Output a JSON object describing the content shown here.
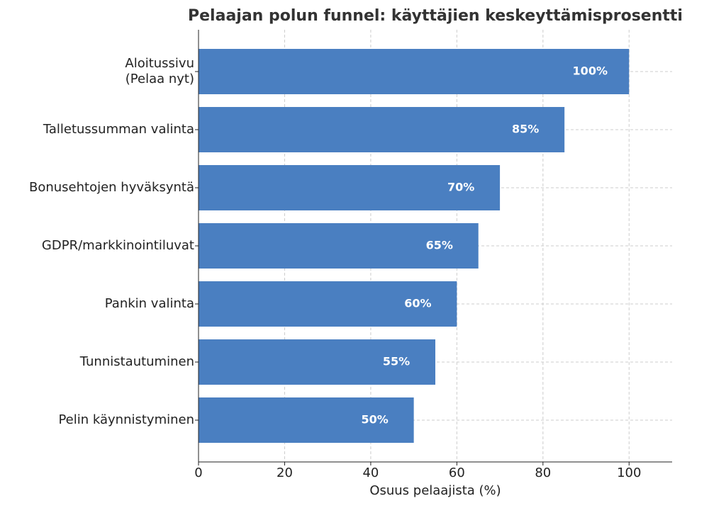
{
  "chart_data": {
    "type": "barh",
    "title": "Pelaajan polun funnel: käyttäjien keskeyttämisprosentti",
    "x_label": "Osuus pelaajista (%)",
    "categories": [
      "Aloitussivu\n(Pelaa nyt)",
      "Talletussumman valinta",
      "Bonusehtojen hyväksyntä",
      "GDPR/markkinointiluvat",
      "Pankin valinta",
      "Tunnistautuminen",
      "Pelin käynnistyminen"
    ],
    "values": [
      100,
      85,
      70,
      65,
      60,
      55,
      50
    ],
    "value_labels": [
      "100%",
      "85%",
      "70%",
      "65%",
      "60%",
      "55%",
      "50%"
    ],
    "color": "#4a7fc1",
    "xlim": [
      0,
      110
    ],
    "xticks": [
      0,
      20,
      40,
      60,
      80,
      100
    ],
    "grid": true
  }
}
